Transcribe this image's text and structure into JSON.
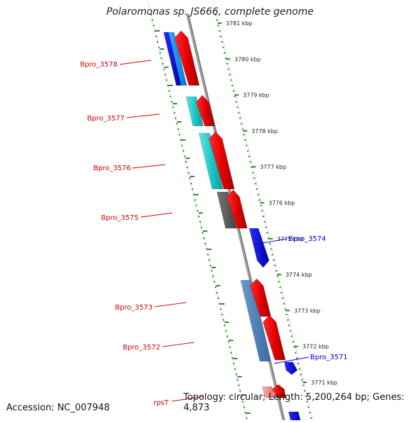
{
  "title": "Polaromonas sp. JS666, complete genome",
  "footer": {
    "accession": "Accession: NC_007948",
    "topology": "Topology: circular; Length: 5,200,264 bp; Genes: 4,873"
  },
  "kbp_ticks": [
    "3781 kbp",
    "3780 kbp",
    "3779 kbp",
    "3778 kbp",
    "3777 kbp",
    "3776 kbp",
    "3775 kbp",
    "3774 kbp",
    "3773 kbp",
    "3772 kbp",
    "3771 kbp"
  ],
  "genes": [
    {
      "label": "Bpro_3578",
      "color": "#cc0000"
    },
    {
      "label": "Bpro_3577",
      "color": "#cc0000"
    },
    {
      "label": "Bpro_3576",
      "color": "#cc0000"
    },
    {
      "label": "Bpro_3575",
      "color": "#cc0000"
    },
    {
      "label": "Bpro_3574",
      "color": "#0000cc"
    },
    {
      "label": "Bpro_3573",
      "color": "#cc0000"
    },
    {
      "label": "Bpro_3572",
      "color": "#cc0000"
    },
    {
      "label": "Bpro_3571",
      "color": "#0000cc"
    },
    {
      "label": "rpsT",
      "color": "#cc0000"
    }
  ],
  "colors": {
    "strand_arrow": "#ff0000",
    "reverse_arrow": "#0000ff",
    "dot_line": "#2e8b22",
    "backbone": "#888888"
  }
}
